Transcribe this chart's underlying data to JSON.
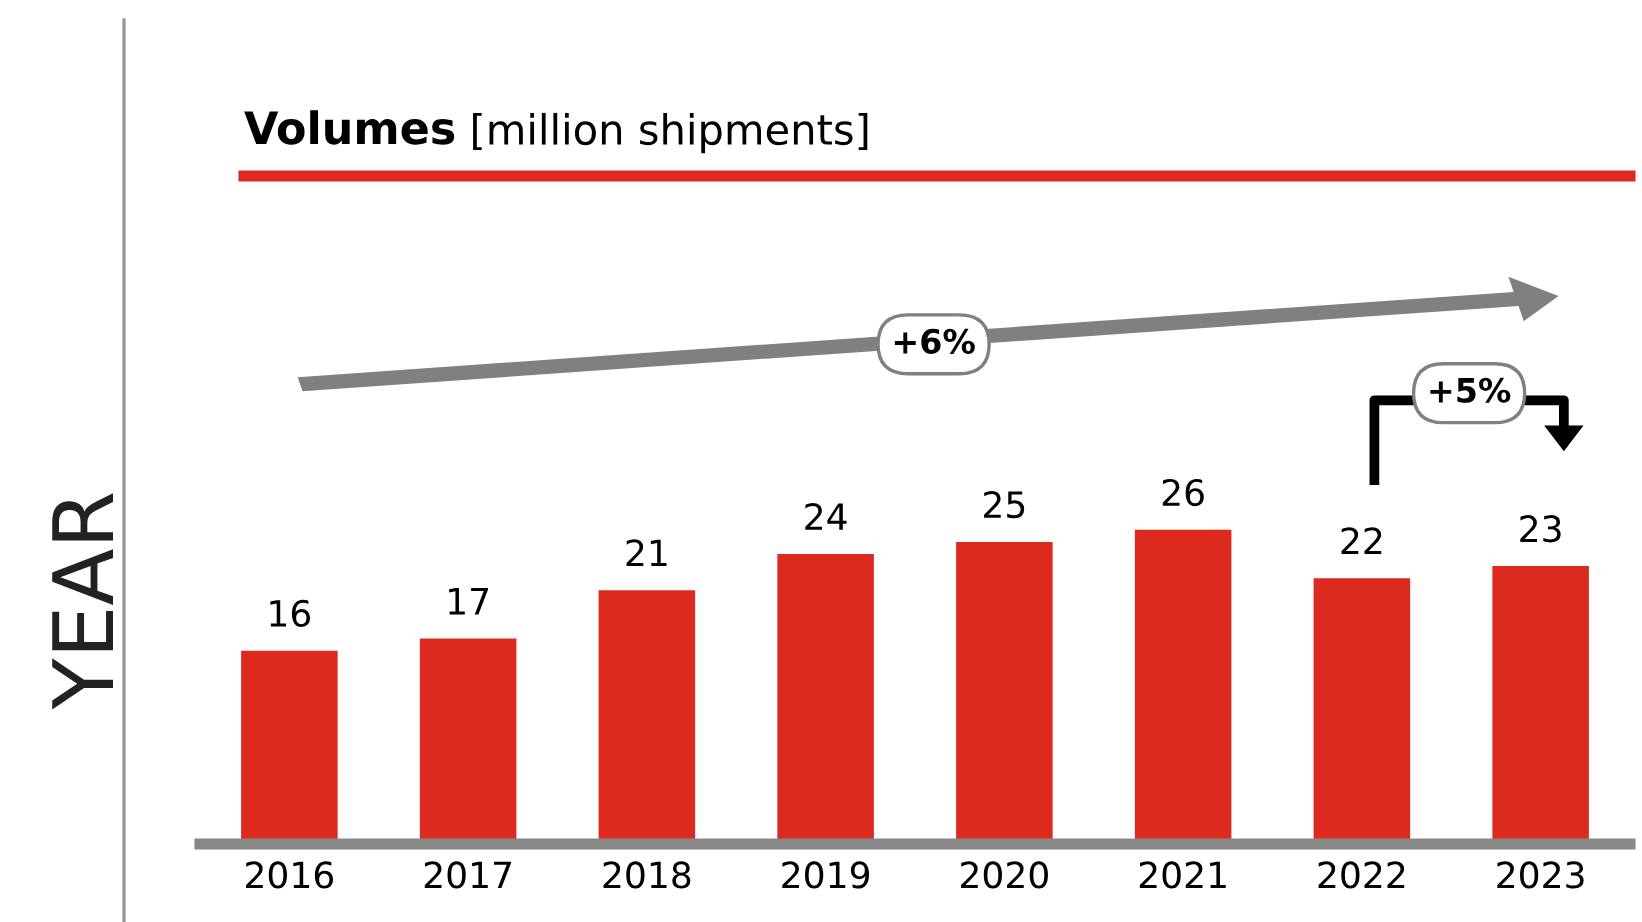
{
  "chart_data": {
    "type": "bar",
    "title": "Volumes",
    "subtitle": "[million shipments]",
    "ylabel": "YEAR",
    "categories": [
      "2016",
      "2017",
      "2018",
      "2019",
      "2020",
      "2021",
      "2022",
      "2023"
    ],
    "values": [
      16,
      17,
      21,
      24,
      25,
      26,
      22,
      23
    ],
    "color": "#dc2a1f",
    "data_labels": true,
    "grid": false,
    "legend": false,
    "annotations": [
      "+6%",
      "+5%"
    ]
  }
}
